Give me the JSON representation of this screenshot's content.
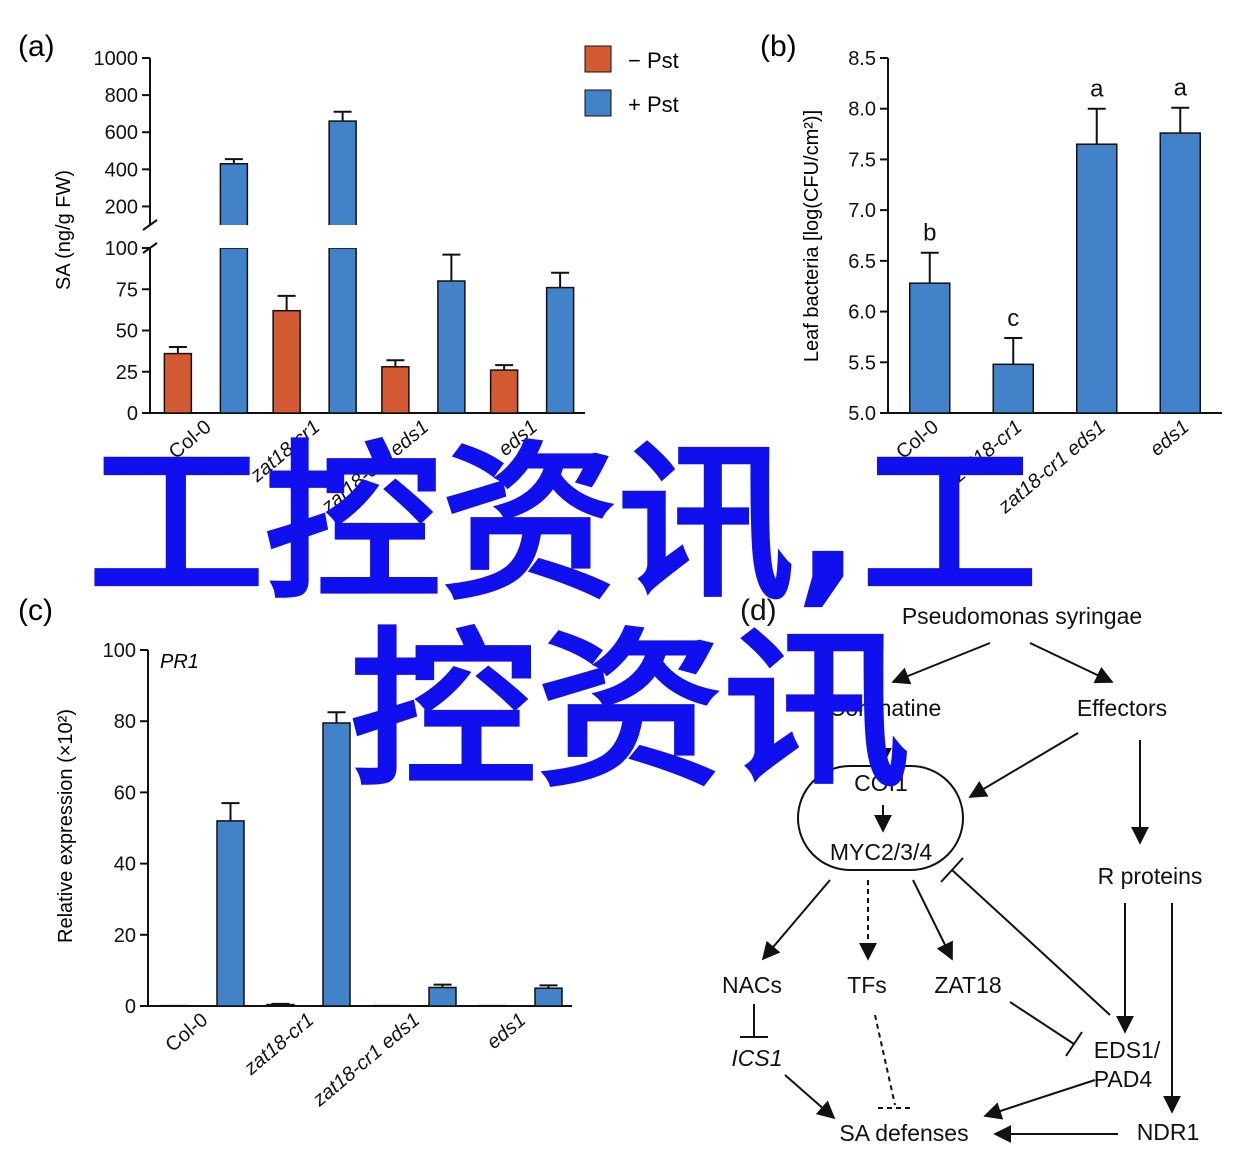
{
  "watermark": {
    "line1": "工控资讯,工",
    "line2": "控资讯"
  },
  "colors": {
    "neg": "#d45a33",
    "pos": "#4182c8",
    "axis": "#111111"
  },
  "chart_data": [
    {
      "panel": "(a)",
      "type": "bar",
      "ylabel": "SA (ng/g FW)",
      "categories": [
        "Col-0",
        "zat18-cr1",
        "zat18-cr1 eds1",
        "eds1"
      ],
      "series": [
        {
          "name": "−Pst",
          "values": [
            36,
            62,
            28,
            26
          ],
          "errors": [
            4,
            9,
            4,
            3
          ]
        },
        {
          "name": "+Pst",
          "values": [
            430,
            660,
            80,
            76
          ],
          "errors": [
            25,
            50,
            16,
            9
          ]
        }
      ],
      "ylim_lower": [
        0,
        100
      ],
      "ylim_upper": [
        100,
        1000
      ],
      "yticks_lower": [
        "0",
        "25",
        "50",
        "75",
        "100"
      ],
      "yticks_upper": [
        "200",
        "400",
        "600",
        "800",
        "1000"
      ],
      "legend": [
        {
          "label": "− Pst"
        },
        {
          "label": "+ Pst"
        }
      ],
      "axis_break": true
    },
    {
      "panel": "(b)",
      "type": "bar",
      "ylabel": "Leaf bacteria [log(CFU/cm²)]",
      "categories": [
        "Col-0",
        "zat18-cr1",
        "zat18-cr1 eds1",
        "eds1"
      ],
      "values": [
        6.28,
        5.48,
        7.65,
        7.76
      ],
      "errors": [
        0.3,
        0.26,
        0.35,
        0.25
      ],
      "significance": [
        "b",
        "c",
        "a",
        "a"
      ],
      "ylim": [
        5.0,
        8.5
      ],
      "yticks": [
        "5.0",
        "5.5",
        "6.0",
        "6.5",
        "7.0",
        "7.5",
        "8.0",
        "8.5"
      ]
    },
    {
      "panel": "(c)",
      "type": "bar",
      "title": "PR1",
      "ylabel": "Relative expression (×10²)",
      "categories": [
        "Col-0",
        "zat18-cr1",
        "zat18-cr1 eds1",
        "eds1"
      ],
      "series": [
        {
          "name": "−Pst",
          "values": [
            0.1,
            0.4,
            0.1,
            0.1
          ],
          "errors": [
            0,
            0.2,
            0,
            0
          ]
        },
        {
          "name": "+Pst",
          "values": [
            52,
            79.5,
            5.2,
            5
          ],
          "errors": [
            5,
            3,
            0.8,
            0.8
          ]
        }
      ],
      "ylim": [
        0,
        100
      ],
      "yticks": [
        "0",
        "20",
        "40",
        "60",
        "80",
        "100"
      ]
    }
  ],
  "diagram": {
    "panel": "(d)",
    "nodes": {
      "pseudomonas": "Pseudomonas syringae",
      "coronatine": "Coronatine",
      "effectors": "Effectors",
      "coi1": "COI1",
      "myc": "MYC2/3/4",
      "rproteins": "R proteins",
      "nacs": "NACs",
      "tfs": "TFs",
      "zat18": "ZAT18",
      "ics1": "ICS1",
      "eds1": "EDS1/",
      "pad4": "PAD4",
      "sadef": "SA defenses",
      "ndr1": "NDR1"
    }
  }
}
